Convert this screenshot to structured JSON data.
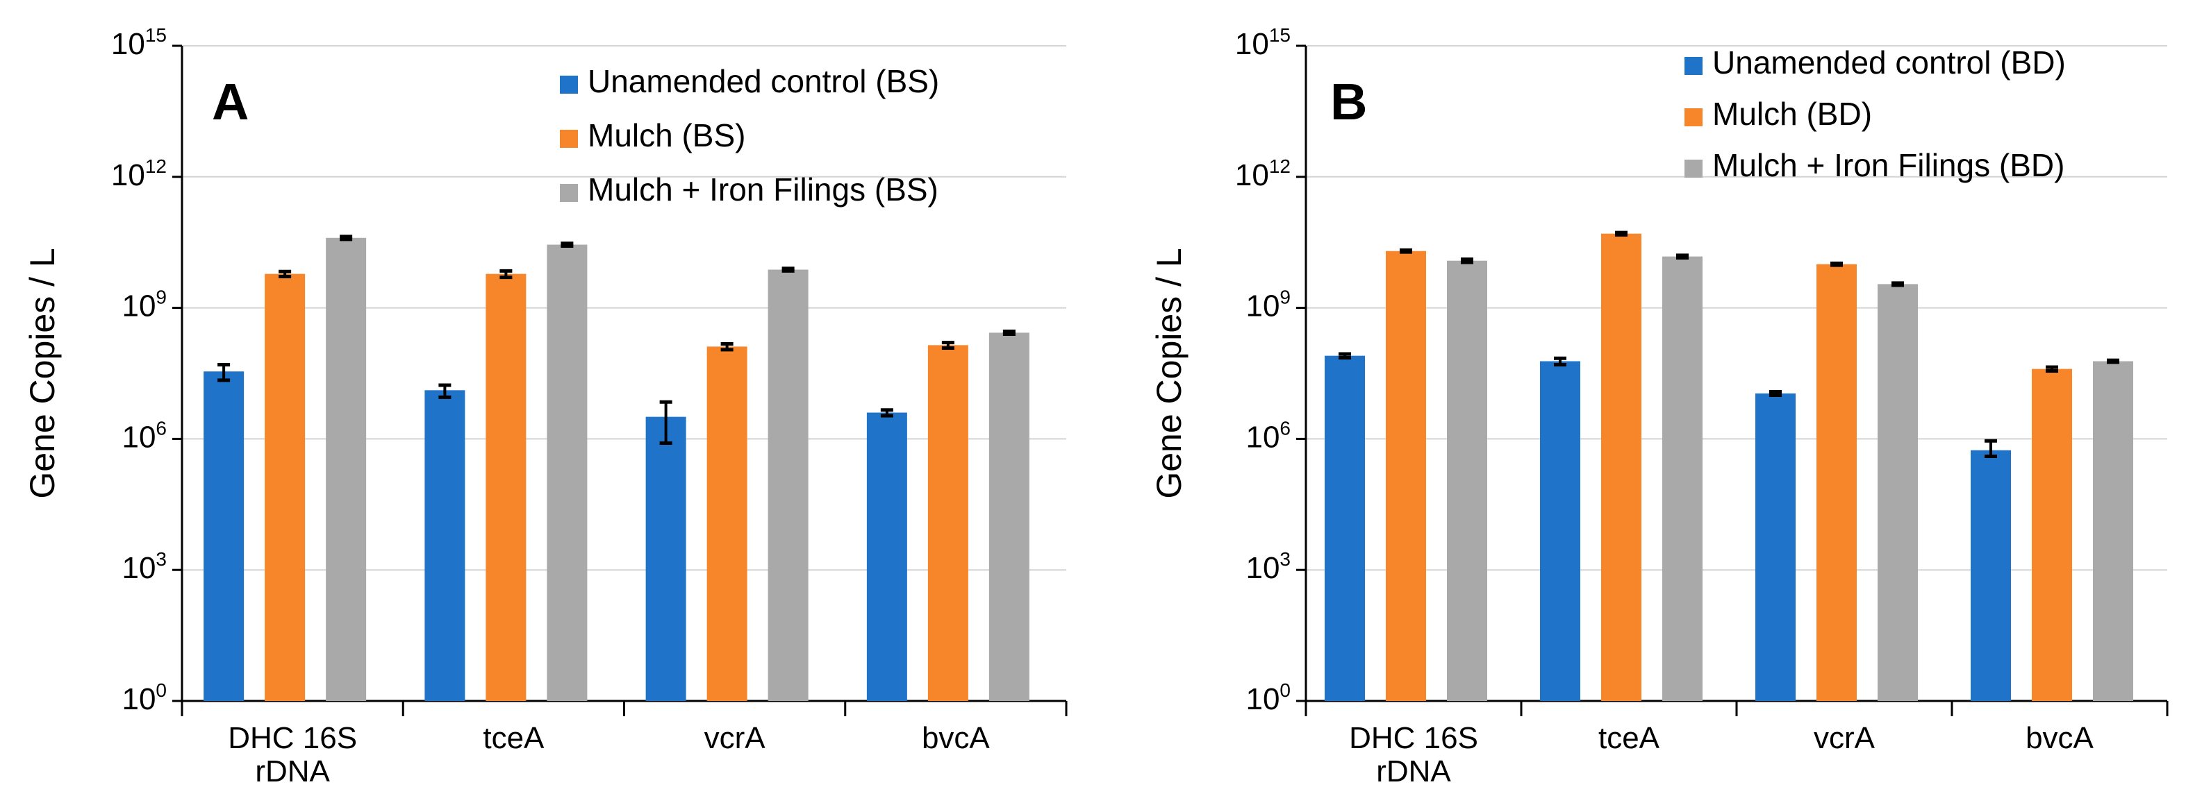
{
  "chart_data": [
    {
      "type": "bar",
      "panel_label": "A",
      "ylabel": "Gene Copies / L",
      "yscale": "log",
      "ylim": [
        1,
        1000000000000000.0
      ],
      "yticks": [
        {
          "base": "10",
          "exp": "0"
        },
        {
          "base": "10",
          "exp": "3"
        },
        {
          "base": "10",
          "exp": "6"
        },
        {
          "base": "10",
          "exp": "9"
        },
        {
          "base": "10",
          "exp": "12"
        },
        {
          "base": "10",
          "exp": "15"
        }
      ],
      "categories": [
        [
          "DHC 16S",
          "rDNA"
        ],
        [
          "tceA"
        ],
        [
          "vcrA"
        ],
        [
          "bvcA"
        ]
      ],
      "legend_position": "top-right",
      "grid": true,
      "series": [
        {
          "name": "Unamended control (BS)",
          "color": "#1F73C8",
          "values": [
            35000000.0,
            13000000.0,
            3200000.0,
            4000000.0
          ],
          "err_low": [
            22000000.0,
            9000000.0,
            800000.0,
            3400000.0
          ],
          "err_high": [
            50000000.0,
            17000000.0,
            7000000.0,
            4600000.0
          ]
        },
        {
          "name": "Mulch (BS)",
          "color": "#F7862B",
          "values": [
            6000000000.0,
            6000000000.0,
            130000000.0,
            140000000.0
          ],
          "err_low": [
            5200000000.0,
            5000000000.0,
            110000000.0,
            120000000.0
          ],
          "err_high": [
            6800000000.0,
            7000000000.0,
            150000000.0,
            160000000.0
          ]
        },
        {
          "name": "Mulch + Iron Filings (BS)",
          "color": "#A9A9A9",
          "values": [
            40000000000.0,
            28000000000.0,
            7500000000.0,
            270000000.0
          ],
          "err_low": [
            37000000000.0,
            26000000000.0,
            7000000000.0,
            250000000.0
          ],
          "err_high": [
            43000000000.0,
            30000000000.0,
            8000000000.0,
            290000000.0
          ]
        }
      ]
    },
    {
      "type": "bar",
      "panel_label": "B",
      "ylabel": "Gene Copies / L",
      "yscale": "log",
      "ylim": [
        1,
        1000000000000000.0
      ],
      "yticks": [
        {
          "base": "10",
          "exp": "0"
        },
        {
          "base": "10",
          "exp": "3"
        },
        {
          "base": "10",
          "exp": "6"
        },
        {
          "base": "10",
          "exp": "9"
        },
        {
          "base": "10",
          "exp": "12"
        },
        {
          "base": "10",
          "exp": "15"
        }
      ],
      "categories": [
        [
          "DHC 16S",
          "rDNA"
        ],
        [
          "tceA"
        ],
        [
          "vcrA"
        ],
        [
          "bvcA"
        ]
      ],
      "legend_position": "top-right",
      "grid": true,
      "series": [
        {
          "name": "Unamended control (BD)",
          "color": "#1F73C8",
          "values": [
            80000000.0,
            60000000.0,
            11000000.0,
            550000.0
          ],
          "err_low": [
            72000000.0,
            50000000.0,
            10000000.0,
            400000.0
          ],
          "err_high": [
            88000000.0,
            70000000.0,
            12000000.0,
            900000.0
          ]
        },
        {
          "name": "Mulch (BD)",
          "color": "#F7862B",
          "values": [
            20000000000.0,
            50000000000.0,
            10000000000.0,
            40000000.0
          ],
          "err_low": [
            19000000000.0,
            47000000000.0,
            9500000000.0,
            36000000.0
          ],
          "err_high": [
            21000000000.0,
            53000000000.0,
            10500000000.0,
            44000000.0
          ]
        },
        {
          "name": "Mulch + Iron Filings (BD)",
          "color": "#A9A9A9",
          "values": [
            12000000000.0,
            15000000000.0,
            3500000000.0,
            60000000.0
          ],
          "err_low": [
            11000000000.0,
            14000000000.0,
            3300000000.0,
            57000000.0
          ],
          "err_high": [
            13000000000.0,
            16000000000.0,
            3700000000.0,
            63000000.0
          ]
        }
      ]
    }
  ]
}
